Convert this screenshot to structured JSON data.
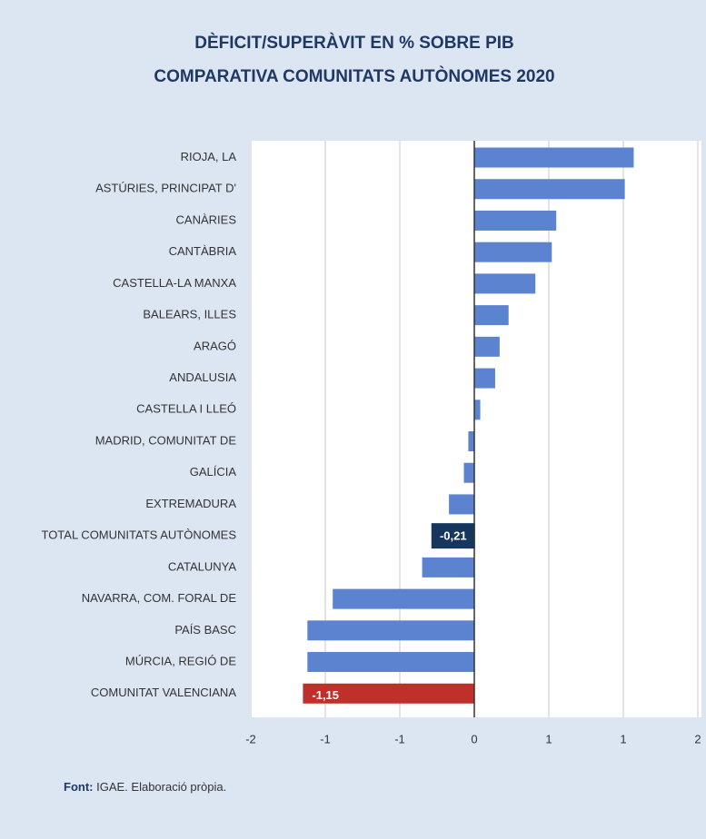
{
  "chart_data": {
    "type": "hbar",
    "title": [
      "DÈFICIT/SUPERÀVIT EN % SOBRE PIB",
      "COMPARATIVA COMUNITATS AUTÒNOMES 2020"
    ],
    "categories": [
      "RIOJA, LA",
      "ASTÚRIES, PRINCIPAT D'",
      "CANÀRIES",
      "CANTÀBRIA",
      "CASTELLA-LA MANXA",
      "BALEARS, ILLES",
      "ARAGÓ",
      "ANDALUSIA",
      "CASTELLA I LLEÓ",
      "MADRID, COMUNITAT DE",
      "GALÍCIA",
      "EXTREMADURA",
      "TOTAL COMUNITATS AUTÒNOMES",
      "CATALUNYA",
      "NAVARRA, COM. FORAL DE",
      "PAÍS BASC",
      "MÚRCIA, REGIÓ DE",
      "COMUNITAT VALENCIANA"
    ],
    "values": [
      1.07,
      1.01,
      0.55,
      0.52,
      0.41,
      0.23,
      0.17,
      0.14,
      0.04,
      -0.04,
      -0.07,
      -0.17,
      -0.21,
      -0.35,
      -0.95,
      -1.12,
      -1.12,
      -1.15
    ],
    "value_labels": [
      null,
      null,
      null,
      null,
      null,
      null,
      null,
      null,
      null,
      null,
      null,
      null,
      "-0,21",
      null,
      null,
      null,
      null,
      "-1,15"
    ],
    "colors": [
      "#5b83cf",
      "#5b83cf",
      "#5b83cf",
      "#5b83cf",
      "#5b83cf",
      "#5b83cf",
      "#5b83cf",
      "#5b83cf",
      "#5b83cf",
      "#5b83cf",
      "#5b83cf",
      "#5b83cf",
      "#17365d",
      "#5b83cf",
      "#5b83cf",
      "#5b83cf",
      "#5b83cf",
      "#c0302b"
    ],
    "xlim": [
      -1.5,
      1.5
    ],
    "xticks": [
      {
        "value": -1.5,
        "label": "-2"
      },
      {
        "value": -1,
        "label": "-1"
      },
      {
        "value": -0.5,
        "label": "-1"
      },
      0,
      {
        "value": 0.5,
        "label": "1"
      },
      1,
      {
        "value": 1.5,
        "label": "2"
      }
    ],
    "grid": true,
    "source_label": "Font:",
    "source": "IGAE. Elaboració pròpia."
  }
}
